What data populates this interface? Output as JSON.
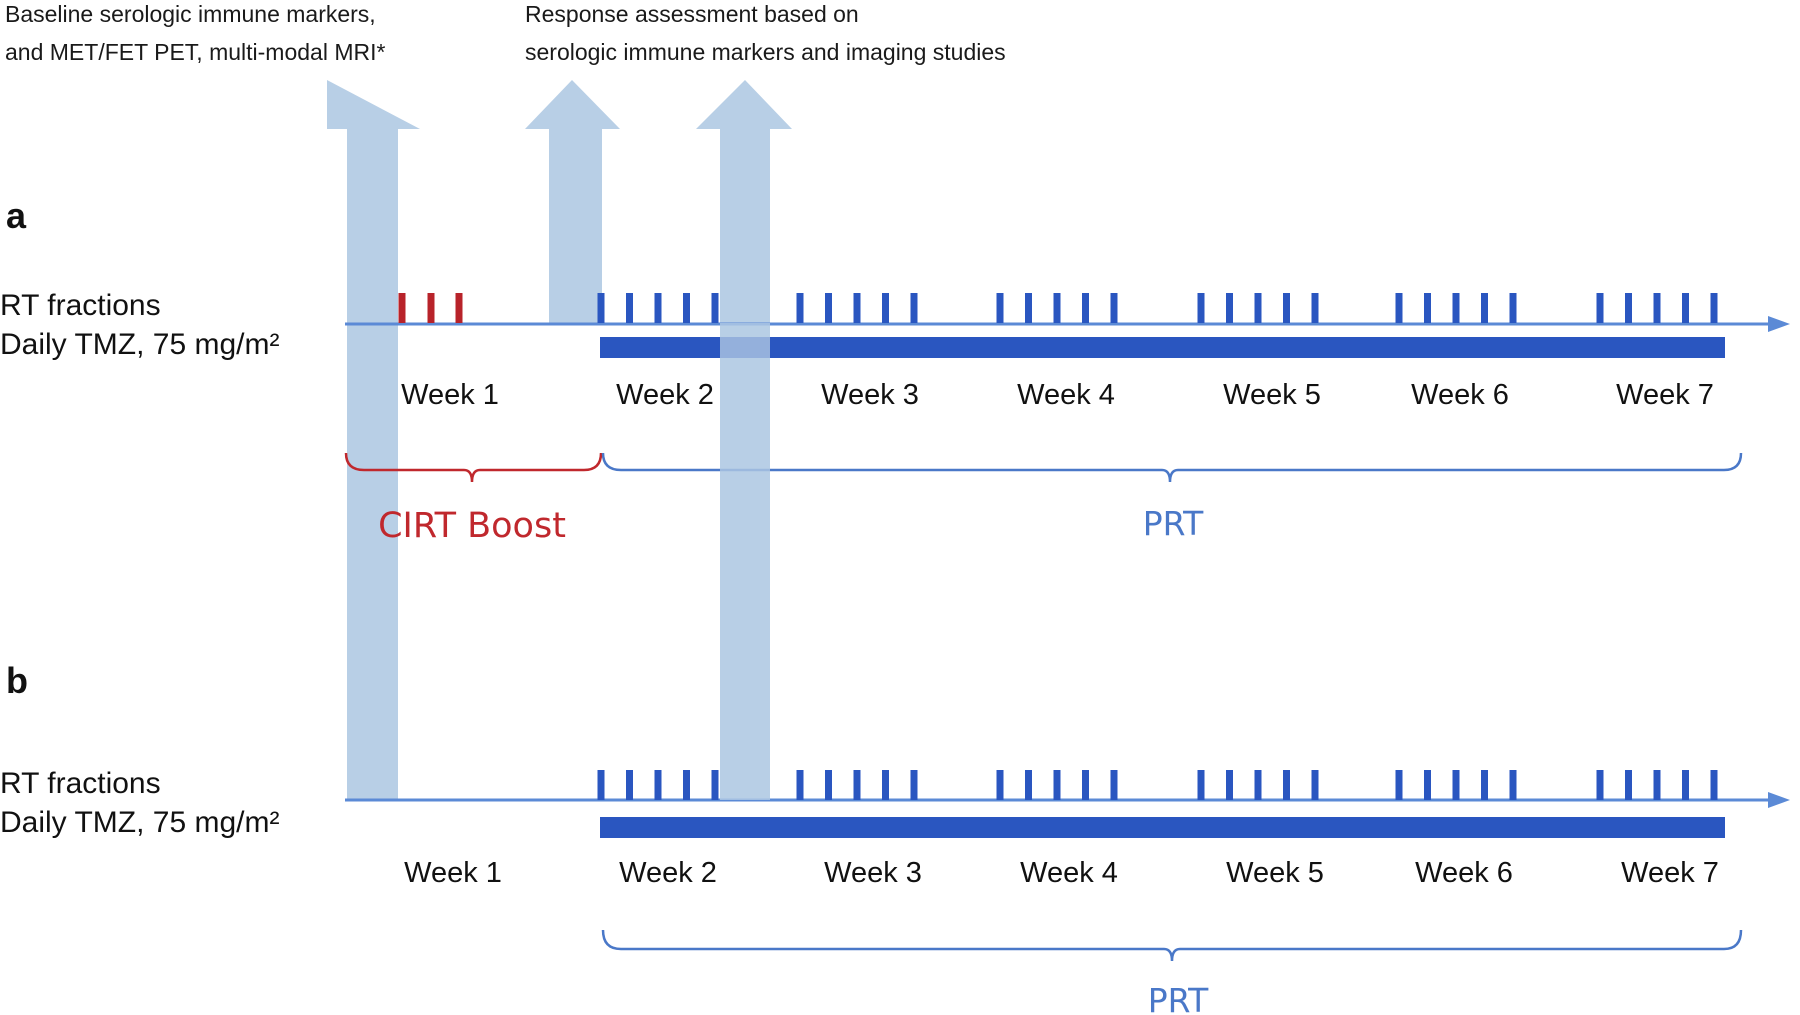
{
  "annotations": {
    "baseline_line1": "Baseline serologic immune markers,",
    "baseline_line2": "and MET/FET PET, multi-modal MRI*",
    "response_line1": "Response assessment based on",
    "response_line2": "serologic immune markers and imaging studies"
  },
  "panels": [
    {
      "label": "a",
      "rows": [
        "RT fractions",
        "Daily TMZ, 75 mg/m²"
      ],
      "weeks": [
        "Week 1",
        "Week 2",
        "Week 3",
        "Week 4",
        "Week 5",
        "Week 6",
        "Week 7"
      ],
      "cirt_fractions": 3,
      "prt_fractions_per_week": 5,
      "braces": [
        {
          "label": "CIRT Boost",
          "color": "#c0282d"
        },
        {
          "label": "PRT",
          "color": "#4a78c8"
        }
      ]
    },
    {
      "label": "b",
      "rows": [
        "RT fractions",
        "Daily TMZ, 75 mg/m²"
      ],
      "weeks": [
        "Week 1",
        "Week 2",
        "Week 3",
        "Week 4",
        "Week 5",
        "Week 6",
        "Week 7"
      ],
      "cirt_fractions": 0,
      "prt_fractions_per_week": 5,
      "braces": [
        {
          "label": "PRT",
          "color": "#4a78c8"
        }
      ]
    }
  ],
  "colors": {
    "cirt": "#b8232a",
    "prt_tick": "#2a56c0",
    "tmz_bar": "#2a56c0",
    "axis": "#5b8ad6",
    "assessment_arrow": "#b8cfe6"
  }
}
